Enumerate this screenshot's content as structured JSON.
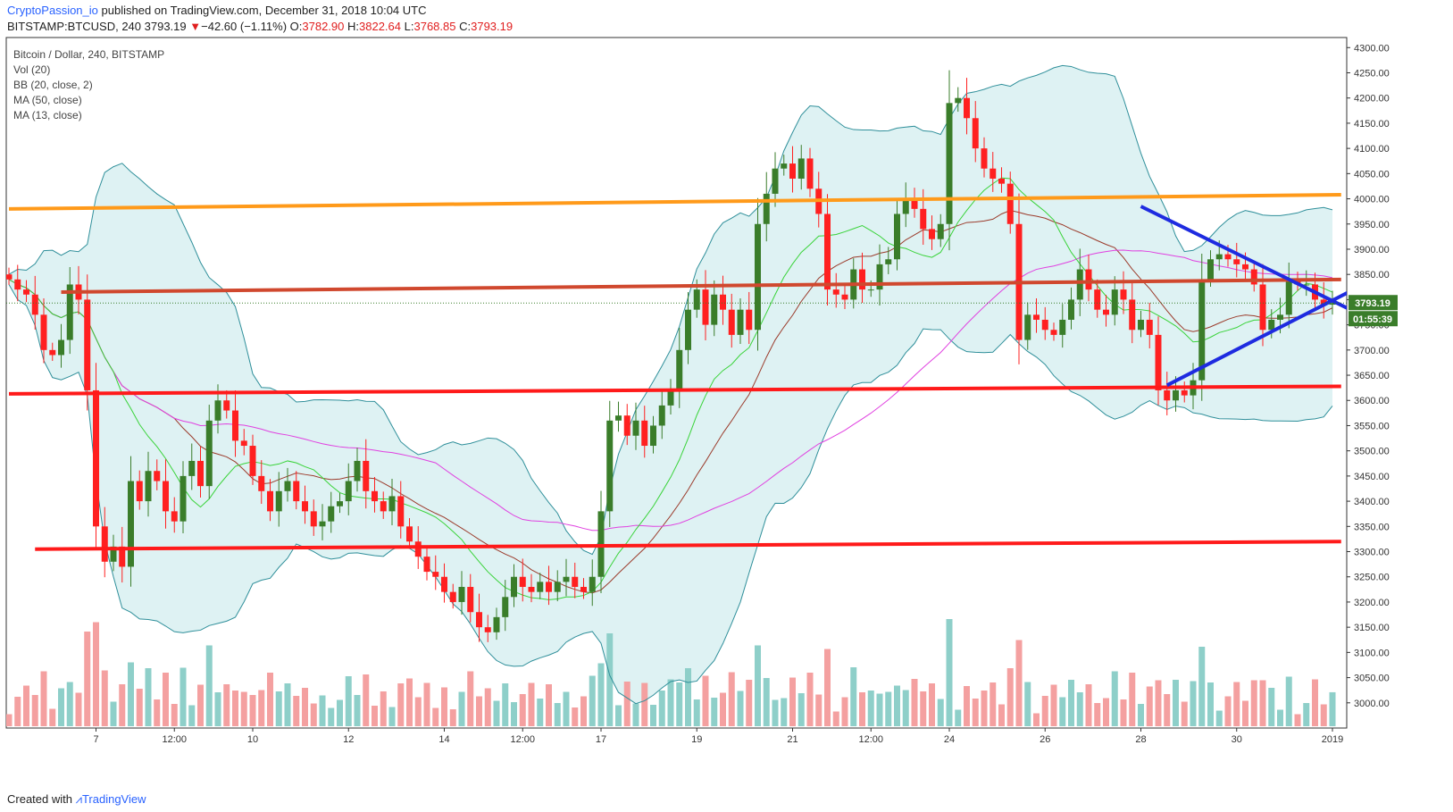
{
  "header": {
    "author": "CryptoPassion_io",
    "published_text": "published on TradingView.com, December 31, 2018 10:04 UTC",
    "symbol": "BITSTAMP:BTCUSD, 240",
    "last": "3793.19",
    "change_arrow": "▼",
    "change": "−42.60 (−1.11%)",
    "o_label": "O:",
    "o": "3782.90",
    "h_label": "H:",
    "h": "3822.64",
    "l_label": "L:",
    "l": "3768.85",
    "c_label": "C:",
    "c": "3793.19"
  },
  "legend": {
    "title": "Bitcoin / Dollar, 240, BITSTAMP",
    "vol": "Vol (20)",
    "bb": "BB (20, close, 2)",
    "ma50": "MA (50, close)",
    "ma13": "MA (13, close)"
  },
  "footer": {
    "created": "Created with",
    "brand": "TradingView"
  },
  "colors": {
    "up": "#3a7d2a",
    "down": "#ff2020",
    "vol_up": "#8ecfc9",
    "vol_down": "#f4a0a0",
    "bb_line": "#2f8f9a",
    "bb_fill": "#d6eff0",
    "ma50": "#e040e0",
    "ma13": "#39d339",
    "basis": "#9b3b2b",
    "support": "#ff1a1a",
    "resistance_mid": "#d0482e",
    "resistance_top": "#ff9a1a",
    "triangle": "#1e2be0",
    "price_tag": "#3a7d2a"
  },
  "chart_data": {
    "type": "candlestick",
    "title": "Bitcoin / Dollar, 240, BITSTAMP",
    "ylim": [
      2950,
      4320
    ],
    "y_ticks": [
      "4300.00",
      "4250.00",
      "4200.00",
      "4150.00",
      "4100.00",
      "4050.00",
      "4000.00",
      "3950.00",
      "3900.00",
      "3850.00",
      "3800.00",
      "3750.00",
      "3700.00",
      "3650.00",
      "3600.00",
      "3550.00",
      "3500.00",
      "3450.00",
      "3400.00",
      "3350.00",
      "3300.00",
      "3250.00",
      "3200.00",
      "3150.00",
      "3100.00",
      "3050.00",
      "3000.00"
    ],
    "x_ticks": [
      {
        "label": "7",
        "bar": 10
      },
      {
        "label": "12:00",
        "bar": 19
      },
      {
        "label": "10",
        "bar": 28
      },
      {
        "label": "12",
        "bar": 39
      },
      {
        "label": "14",
        "bar": 50
      },
      {
        "label": "12:00",
        "bar": 59
      },
      {
        "label": "17",
        "bar": 68
      },
      {
        "label": "19",
        "bar": 79
      },
      {
        "label": "21",
        "bar": 90
      },
      {
        "label": "12:00",
        "bar": 99
      },
      {
        "label": "24",
        "bar": 108
      },
      {
        "label": "26",
        "bar": 119
      },
      {
        "label": "28",
        "bar": 130
      },
      {
        "label": "30",
        "bar": 141
      },
      {
        "label": "2019",
        "bar": 152
      }
    ],
    "ohlc_close_path": [
      3840,
      3820,
      3810,
      3770,
      3700,
      3690,
      3720,
      3830,
      3800,
      3620,
      3350,
      3280,
      3310,
      3270,
      3440,
      3400,
      3460,
      3440,
      3380,
      3360,
      3450,
      3480,
      3430,
      3560,
      3600,
      3580,
      3520,
      3510,
      3450,
      3420,
      3380,
      3420,
      3440,
      3400,
      3380,
      3350,
      3360,
      3390,
      3400,
      3440,
      3480,
      3420,
      3400,
      3380,
      3410,
      3350,
      3320,
      3290,
      3260,
      3250,
      3220,
      3200,
      3230,
      3180,
      3150,
      3140,
      3170,
      3210,
      3250,
      3230,
      3220,
      3240,
      3220,
      3240,
      3250,
      3230,
      3220,
      3250,
      3380,
      3560,
      3570,
      3530,
      3560,
      3510,
      3550,
      3590,
      3620,
      3700,
      3780,
      3820,
      3750,
      3810,
      3780,
      3730,
      3780,
      3740,
      3950,
      4010,
      4060,
      4070,
      4040,
      4080,
      4020,
      3970,
      3820,
      3810,
      3800,
      3860,
      3820,
      3820,
      3870,
      3880,
      3970,
      4000,
      3980,
      3940,
      3920,
      3950,
      4190,
      4200,
      4160,
      4100,
      4060,
      4040,
      4030,
      3950,
      3720,
      3770,
      3760,
      3740,
      3730,
      3760,
      3800,
      3860,
      3820,
      3780,
      3770,
      3820,
      3800,
      3740,
      3760,
      3730,
      3620,
      3600,
      3620,
      3610,
      3640,
      3840,
      3880,
      3890,
      3880,
      3870,
      3860,
      3830,
      3740,
      3760,
      3770,
      3840,
      3830,
      3830,
      3800,
      3790,
      3793
    ],
    "support_lines": [
      {
        "name": "support-3300",
        "from": [
          3,
          3305
        ],
        "to": [
          153,
          3320
        ]
      },
      {
        "name": "support-3620",
        "from": [
          0,
          3613
        ],
        "to": [
          153,
          3628
        ]
      }
    ],
    "resistance_lines": [
      {
        "name": "resistance-3840",
        "from": [
          6,
          3815
        ],
        "to": [
          153,
          3840
        ]
      },
      {
        "name": "resistance-4000",
        "from": [
          0,
          3980
        ],
        "to": [
          153,
          4008
        ]
      }
    ],
    "triangle": {
      "upper": {
        "from": [
          130,
          3985
        ],
        "to": [
          155,
          3772
        ]
      },
      "lower": {
        "from": [
          133,
          3630
        ],
        "to": [
          155,
          3825
        ]
      }
    },
    "last_price": "3793.19",
    "countdown": "01:55:39"
  }
}
